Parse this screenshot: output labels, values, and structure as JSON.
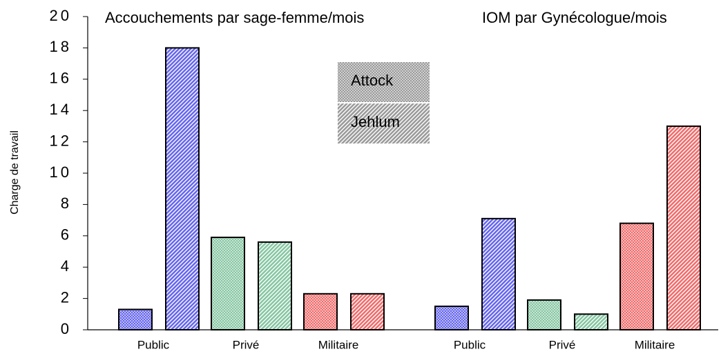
{
  "chart_data": {
    "type": "bar",
    "y_label": "Charge de travail",
    "group_titles": [
      "Accouchements par sage-femme/mois",
      "IOM par Gynécologue/mois"
    ],
    "categories": [
      "Public",
      "Privé",
      "Militaire",
      "Public",
      "Privé",
      "Militaire"
    ],
    "category_colors": [
      "#6666ee",
      "#86c6a2",
      "#f06c6c",
      "#6666ee",
      "#86c6a2",
      "#f06c6c"
    ],
    "series": [
      {
        "name": "Attock",
        "pattern": "checker",
        "values": [
          1.3,
          5.9,
          2.3,
          1.5,
          1.9,
          6.8
        ]
      },
      {
        "name": "Jehlum",
        "pattern": "hatch",
        "values": [
          18,
          5.6,
          2.3,
          7.1,
          1.0,
          13
        ]
      }
    ],
    "ylim": [
      0,
      20
    ],
    "yticks": [
      0,
      2,
      4,
      6,
      8,
      10,
      12,
      14,
      16,
      18,
      20
    ]
  }
}
